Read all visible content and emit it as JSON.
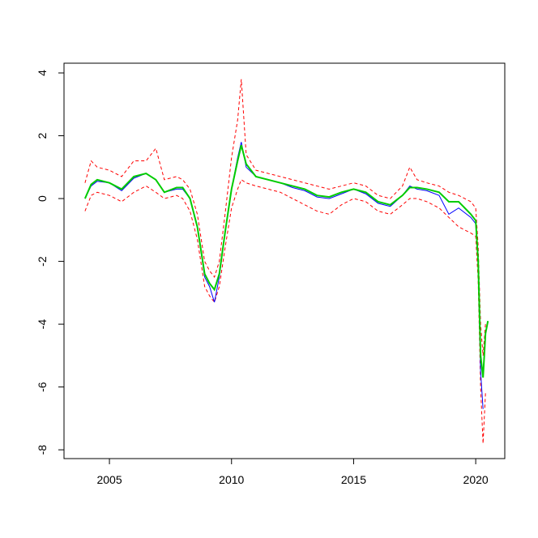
{
  "chart_data": {
    "type": "line",
    "x": [
      2004.0,
      2004.25,
      2004.5,
      2005.0,
      2005.5,
      2006.0,
      2006.5,
      2006.9,
      2007.25,
      2007.75,
      2008.0,
      2008.3,
      2008.6,
      2008.9,
      2009.1,
      2009.3,
      2009.5,
      2009.75,
      2010.0,
      2010.25,
      2010.4,
      2010.6,
      2011.0,
      2011.5,
      2012.0,
      2012.5,
      2013.0,
      2013.5,
      2014.0,
      2014.5,
      2015.0,
      2015.5,
      2016.0,
      2016.5,
      2017.0,
      2017.3,
      2017.6,
      2018.0,
      2018.5,
      2018.9,
      2019.3,
      2019.8,
      2020.0,
      2020.1,
      2020.2,
      2020.3,
      2020.4,
      2020.5
    ],
    "series": [
      {
        "color": "#ff0000",
        "dashed": true,
        "width": 1,
        "values": [
          0.5,
          1.2,
          1.0,
          0.9,
          0.7,
          1.2,
          1.2,
          1.6,
          0.6,
          0.7,
          0.6,
          0.3,
          -0.5,
          -2.0,
          -2.3,
          -2.5,
          -2.0,
          -0.4,
          1.3,
          2.5,
          3.8,
          1.4,
          0.9,
          0.8,
          0.7,
          0.6,
          0.5,
          0.4,
          0.3,
          0.4,
          0.5,
          0.4,
          0.1,
          0.0,
          0.4,
          1.0,
          0.6,
          0.5,
          0.4,
          0.2,
          0.1,
          -0.1,
          -0.3,
          -1.5,
          -4.0,
          -5.0,
          -4.0,
          null
        ]
      },
      {
        "color": "#ff0000",
        "dashed": true,
        "width": 1,
        "values": [
          -0.4,
          0.1,
          0.2,
          0.1,
          -0.1,
          0.2,
          0.4,
          0.2,
          0.0,
          0.1,
          0.0,
          -0.4,
          -1.3,
          -2.8,
          -3.1,
          -3.3,
          -2.8,
          -1.5,
          -0.3,
          0.3,
          0.6,
          0.5,
          0.4,
          0.3,
          0.2,
          0.0,
          -0.2,
          -0.4,
          -0.5,
          -0.2,
          0.0,
          -0.1,
          -0.4,
          -0.5,
          -0.2,
          0.0,
          0.0,
          -0.1,
          -0.3,
          -0.6,
          -0.9,
          -1.1,
          -1.2,
          -2.6,
          -6.0,
          -7.8,
          -6.2,
          null
        ]
      },
      {
        "color": "#0000ff",
        "dashed": false,
        "width": 1,
        "values": [
          0.0,
          0.4,
          0.55,
          0.5,
          0.25,
          0.65,
          0.8,
          0.6,
          0.2,
          0.3,
          0.3,
          0.0,
          -0.9,
          -2.5,
          -2.8,
          -3.3,
          -2.5,
          -1.0,
          0.3,
          1.3,
          1.8,
          1.0,
          0.7,
          0.6,
          0.5,
          0.35,
          0.25,
          0.05,
          0.0,
          0.15,
          0.3,
          0.15,
          -0.15,
          -0.25,
          0.1,
          0.4,
          0.3,
          0.25,
          0.1,
          -0.5,
          -0.3,
          -0.6,
          -0.8,
          -2.1,
          -5.5,
          -6.7,
          null,
          null
        ]
      },
      {
        "color": "#00cc00",
        "dashed": false,
        "width": 2,
        "values": [
          0.0,
          0.45,
          0.6,
          0.5,
          0.3,
          0.7,
          0.8,
          0.6,
          0.2,
          0.35,
          0.35,
          0.0,
          -0.9,
          -2.4,
          -2.7,
          -2.9,
          -2.4,
          -1.0,
          0.3,
          1.2,
          1.7,
          1.1,
          0.7,
          0.6,
          0.5,
          0.4,
          0.3,
          0.1,
          0.05,
          0.2,
          0.3,
          0.2,
          -0.1,
          -0.2,
          0.1,
          0.35,
          0.35,
          0.3,
          0.2,
          -0.1,
          -0.1,
          -0.5,
          -0.7,
          -2.0,
          -5.0,
          -5.7,
          -4.3,
          -3.9
        ]
      }
    ],
    "xlim": [
      2003.14,
      2021.19
    ],
    "xticks": [
      2005,
      2010,
      2015,
      2020
    ],
    "ylim": [
      -8.28,
      4.31
    ],
    "yticks": [
      -8,
      -6,
      -4,
      -2,
      0,
      2,
      4
    ]
  }
}
